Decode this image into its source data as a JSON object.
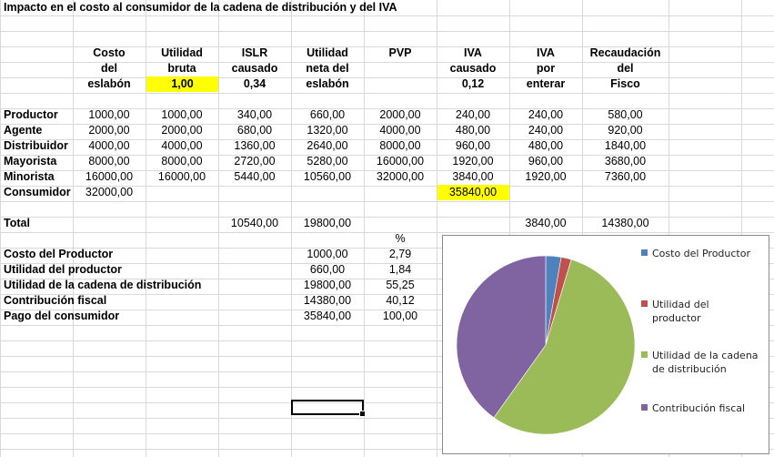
{
  "title": "Impacto en el costo al consumidor de la cadena de distribución y del IVA",
  "headers": [
    [
      "Costo",
      "del",
      "eslabón"
    ],
    [
      "Utilidad",
      "bruta",
      "1,00"
    ],
    [
      "ISLR",
      "causado",
      "0,34"
    ],
    [
      "Utilidad",
      "neta del",
      "eslabón"
    ],
    [
      "PVP",
      "",
      ""
    ],
    [
      "IVA",
      "causado",
      "0,12"
    ],
    [
      "IVA",
      "por",
      "enterar"
    ],
    [
      "Recaudación",
      "del",
      "Fisco"
    ]
  ],
  "rows": [
    {
      "label": "Productor",
      "values": [
        "1000,00",
        "1000,00",
        "340,00",
        "660,00",
        "2000,00",
        "240,00",
        "240,00",
        "580,00"
      ]
    },
    {
      "label": "Agente",
      "values": [
        "2000,00",
        "2000,00",
        "680,00",
        "1320,00",
        "4000,00",
        "480,00",
        "240,00",
        "920,00"
      ]
    },
    {
      "label": "Distribuidor",
      "values": [
        "4000,00",
        "4000,00",
        "1360,00",
        "2640,00",
        "8000,00",
        "960,00",
        "480,00",
        "1840,00"
      ]
    },
    {
      "label": "Mayorista",
      "values": [
        "8000,00",
        "8000,00",
        "2720,00",
        "5280,00",
        "16000,00",
        "1920,00",
        "960,00",
        "3680,00"
      ]
    },
    {
      "label": "Minorista",
      "values": [
        "16000,00",
        "16000,00",
        "5440,00",
        "10560,00",
        "32000,00",
        "3840,00",
        "1920,00",
        "7360,00"
      ]
    },
    {
      "label": "Consumidor",
      "values": [
        "32000,00",
        "",
        "",
        "",
        "",
        "35840,00",
        "",
        ""
      ]
    }
  ],
  "total": {
    "label": "Total",
    "values": [
      "",
      "",
      "10540,00",
      "19800,00",
      "",
      "",
      "3840,00",
      "14380,00"
    ]
  },
  "summary": {
    "percent_header": "%",
    "items": [
      {
        "label": "Costo del Productor",
        "value": "1000,00",
        "percent": "2,79"
      },
      {
        "label": "Utilidad del productor",
        "value": "660,00",
        "percent": "1,84"
      },
      {
        "label": "Utilidad de la cadena de distribución",
        "value": "19800,00",
        "percent": "55,25"
      },
      {
        "label": "Contribución fiscal",
        "value": "14380,00",
        "percent": "40,12"
      },
      {
        "label": "Pago del consumidor",
        "value": "35840,00",
        "percent": "100,00"
      }
    ]
  },
  "highlight_color": "#ffff00",
  "chart_data": {
    "type": "pie",
    "title": "",
    "legend_position": "right",
    "slices": [
      {
        "name": "Costo del Productor",
        "value": 1000,
        "color": "#4f81bd"
      },
      {
        "name": "Utilidad del productor",
        "value": 660,
        "color": "#c0504d"
      },
      {
        "name": "Utilidad de la cadena de distribución",
        "value": 19800,
        "color": "#9bbb59"
      },
      {
        "name": "Contribución fiscal",
        "value": 14380,
        "color": "#8064a2"
      }
    ]
  }
}
